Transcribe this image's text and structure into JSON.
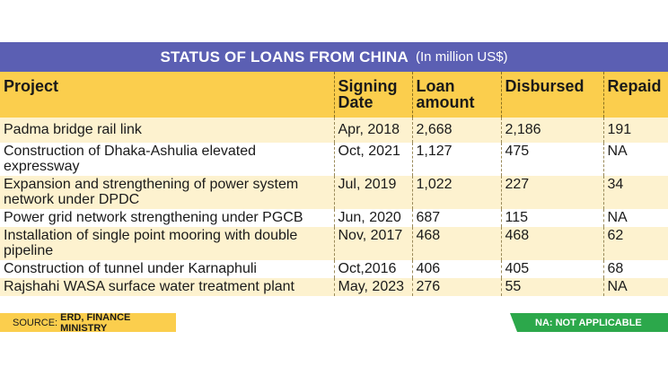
{
  "title": "STATUS OF LOANS FROM CHINA",
  "unit": "(In million US$)",
  "headers": {
    "project": "Project",
    "signing_date": "Signing Date",
    "loan_amount": "Loan amount",
    "disbursed": "Disbursed",
    "repaid": "Repaid"
  },
  "rows": [
    {
      "project": "Padma bridge rail link",
      "date": "Apr, 2018",
      "loan": "2,668",
      "disbursed": "2,186",
      "repaid": "191"
    },
    {
      "project": "Construction of Dhaka-Ashulia elevated expressway",
      "date": "Oct, 2021",
      "loan": "1,127",
      "disbursed": "475",
      "repaid": "NA"
    },
    {
      "project": "Expansion and strengthening of power system network under DPDC",
      "date": "Jul, 2019",
      "loan": "1,022",
      "disbursed": "227",
      "repaid": "34"
    },
    {
      "project": "Power grid network strengthening under PGCB",
      "date": "Jun, 2020",
      "loan": "687",
      "disbursed": "115",
      "repaid": "NA"
    },
    {
      "project": "Installation of single point mooring with double pipeline",
      "date": "Nov, 2017",
      "loan": "468",
      "disbursed": "468",
      "repaid": "62"
    },
    {
      "project": "Construction of tunnel under Karnaphuli",
      "date": "Oct,2016",
      "loan": "406",
      "disbursed": "405",
      "repaid": "68"
    },
    {
      "project": "Rajshahi WASA surface water treatment plant",
      "date": "May, 2023",
      "loan": "276",
      "disbursed": "55",
      "repaid": "NA"
    }
  ],
  "footer": {
    "source_label": "SOURCE:",
    "source_value": "ERD, FINANCE MINISTRY",
    "note": "NA: NOT APPLICABLE"
  },
  "colors": {
    "banner": "#5b5fb3",
    "header": "#fbce4d",
    "row_shade": "#fdf2cf",
    "note_bg": "#2ca84b"
  }
}
